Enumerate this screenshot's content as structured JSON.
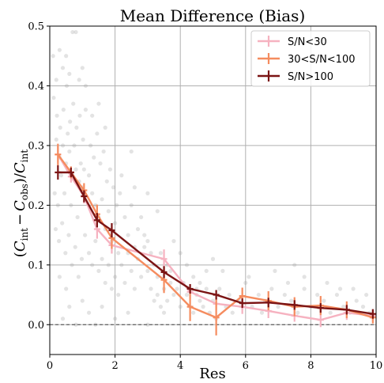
{
  "chart_data": {
    "type": "line",
    "title": "Mean Difference (Bias)",
    "xlabel": "Res",
    "ylabel_parts": {
      "open": "(",
      "c": "C",
      "int": "int",
      "minus": "−",
      "obs": "obs",
      "close": ")/"
    },
    "xlim": [
      0,
      10
    ],
    "ylim": [
      -0.05,
      0.5
    ],
    "xticks": [
      "0",
      "2",
      "4",
      "6",
      "8",
      "10"
    ],
    "yticks": [
      "0.0",
      "0.1",
      "0.2",
      "0.3",
      "0.4",
      "0.5"
    ],
    "grid": true,
    "legend_position": "top-right",
    "reference_line_y": 0.0,
    "series": [
      {
        "name": "S/N<30",
        "color": "#f6b2c0",
        "x": [
          0.25,
          0.65,
          1.05,
          1.45,
          1.9,
          3.5,
          4.3,
          5.1,
          5.9,
          6.7,
          7.5,
          8.3,
          9.1,
          9.9
        ],
        "y": [
          0.285,
          0.248,
          0.215,
          0.16,
          0.133,
          0.11,
          0.055,
          0.035,
          0.03,
          0.023,
          0.015,
          0.008,
          0.02,
          0.015
        ],
        "err": [
          0.014,
          0.01,
          0.012,
          0.016,
          0.014,
          0.016,
          0.012,
          0.01,
          0.012,
          0.012,
          0.01,
          0.012,
          0.012,
          0.01
        ]
      },
      {
        "name": "30<S/N<100",
        "color": "#f58c5f",
        "x": [
          0.25,
          0.65,
          1.05,
          1.45,
          1.9,
          3.5,
          4.3,
          5.1,
          5.9,
          6.7,
          7.5,
          8.3,
          9.1,
          9.9
        ],
        "y": [
          0.285,
          0.255,
          0.225,
          0.185,
          0.145,
          0.075,
          0.03,
          0.012,
          0.048,
          0.04,
          0.03,
          0.032,
          0.025,
          0.012
        ],
        "err": [
          0.018,
          0.01,
          0.012,
          0.016,
          0.018,
          0.022,
          0.024,
          0.03,
          0.014,
          0.016,
          0.016,
          0.016,
          0.014,
          0.01
        ]
      },
      {
        "name": "S/N>100",
        "color": "#7b1414",
        "x": [
          0.25,
          0.65,
          1.05,
          1.45,
          1.9,
          3.5,
          4.3,
          5.1,
          5.9,
          6.7,
          7.5,
          8.3,
          9.1,
          9.9
        ],
        "y": [
          0.255,
          0.255,
          0.215,
          0.175,
          0.158,
          0.088,
          0.06,
          0.05,
          0.036,
          0.037,
          0.033,
          0.028,
          0.025,
          0.018
        ],
        "err": [
          0.012,
          0.008,
          0.01,
          0.012,
          0.012,
          0.01,
          0.008,
          0.008,
          0.008,
          0.008,
          0.008,
          0.008,
          0.008,
          0.008
        ]
      }
    ],
    "scatter_cloud": {
      "color": "#9a9a9a",
      "opacity": 0.28,
      "points": [
        [
          0.1,
          0.45
        ],
        [
          0.2,
          0.31
        ],
        [
          0.3,
          0.28
        ],
        [
          0.4,
          0.3
        ],
        [
          0.5,
          0.27
        ],
        [
          0.6,
          0.29
        ],
        [
          0.7,
          0.25
        ],
        [
          0.8,
          0.26
        ],
        [
          0.9,
          0.24
        ],
        [
          1.0,
          0.23
        ],
        [
          0.15,
          0.22
        ],
        [
          0.25,
          0.2
        ],
        [
          0.35,
          0.25
        ],
        [
          0.45,
          0.22
        ],
        [
          0.55,
          0.32
        ],
        [
          0.65,
          0.2
        ],
        [
          0.75,
          0.3
        ],
        [
          0.85,
          0.18
        ],
        [
          0.95,
          0.27
        ],
        [
          1.05,
          0.26
        ],
        [
          0.12,
          0.38
        ],
        [
          0.22,
          0.35
        ],
        [
          0.32,
          0.33
        ],
        [
          0.42,
          0.36
        ],
        [
          0.52,
          0.4
        ],
        [
          0.62,
          0.34
        ],
        [
          0.72,
          0.37
        ],
        [
          0.82,
          0.33
        ],
        [
          0.92,
          0.35
        ],
        [
          1.02,
          0.31
        ],
        [
          0.18,
          0.16
        ],
        [
          0.28,
          0.14
        ],
        [
          0.38,
          0.17
        ],
        [
          0.48,
          0.12
        ],
        [
          0.58,
          0.15
        ],
        [
          0.68,
          0.1
        ],
        [
          0.78,
          0.13
        ],
        [
          0.88,
          0.08
        ],
        [
          0.98,
          0.11
        ],
        [
          1.08,
          0.15
        ],
        [
          0.7,
          0.49
        ],
        [
          0.8,
          0.49
        ],
        [
          0.3,
          0.46
        ],
        [
          0.4,
          0.43
        ],
        [
          0.6,
          0.42
        ],
        [
          0.9,
          0.41
        ],
        [
          1.0,
          0.43
        ],
        [
          0.2,
          0.41
        ],
        [
          0.5,
          0.45
        ],
        [
          1.1,
          0.4
        ],
        [
          1.2,
          0.25
        ],
        [
          1.3,
          0.22
        ],
        [
          1.4,
          0.2
        ],
        [
          1.5,
          0.18
        ],
        [
          1.6,
          0.21
        ],
        [
          1.7,
          0.16
        ],
        [
          1.8,
          0.19
        ],
        [
          1.9,
          0.14
        ],
        [
          2.0,
          0.17
        ],
        [
          2.1,
          0.12
        ],
        [
          1.25,
          0.3
        ],
        [
          1.35,
          0.28
        ],
        [
          1.45,
          0.32
        ],
        [
          1.55,
          0.27
        ],
        [
          1.65,
          0.29
        ],
        [
          1.75,
          0.24
        ],
        [
          1.85,
          0.26
        ],
        [
          1.95,
          0.23
        ],
        [
          2.05,
          0.2
        ],
        [
          2.15,
          0.22
        ],
        [
          1.2,
          0.12
        ],
        [
          1.3,
          0.1
        ],
        [
          1.4,
          0.14
        ],
        [
          1.5,
          0.09
        ],
        [
          1.6,
          0.11
        ],
        [
          1.7,
          0.07
        ],
        [
          1.8,
          0.1
        ],
        [
          1.9,
          0.06
        ],
        [
          2.0,
          0.08
        ],
        [
          2.1,
          0.05
        ],
        [
          1.3,
          0.35
        ],
        [
          1.5,
          0.37
        ],
        [
          1.7,
          0.33
        ],
        [
          1.1,
          0.36
        ],
        [
          2.2,
          0.25
        ],
        [
          2.3,
          0.18
        ],
        [
          2.4,
          0.15
        ],
        [
          2.5,
          0.2
        ],
        [
          2.6,
          0.13
        ],
        [
          2.7,
          0.16
        ],
        [
          2.2,
          0.1
        ],
        [
          2.3,
          0.07
        ],
        [
          2.4,
          0.12
        ],
        [
          2.5,
          0.09
        ],
        [
          2.6,
          0.06
        ],
        [
          2.7,
          0.11
        ],
        [
          2.8,
          0.08
        ],
        [
          2.9,
          0.13
        ],
        [
          3.0,
          0.09
        ],
        [
          3.1,
          0.06
        ],
        [
          2.8,
          0.18
        ],
        [
          2.9,
          0.15
        ],
        [
          3.0,
          0.14
        ],
        [
          3.1,
          0.12
        ],
        [
          3.2,
          0.1
        ],
        [
          3.3,
          0.08
        ],
        [
          3.4,
          0.12
        ],
        [
          3.5,
          0.06
        ],
        [
          3.6,
          0.1
        ],
        [
          3.7,
          0.07
        ],
        [
          3.2,
          0.04
        ],
        [
          3.3,
          0.05
        ],
        [
          3.4,
          0.03
        ],
        [
          3.5,
          0.02
        ],
        [
          3.6,
          0.04
        ],
        [
          3.7,
          0.09
        ],
        [
          3.8,
          0.05
        ],
        [
          3.9,
          0.06
        ],
        [
          4.0,
          0.03
        ],
        [
          4.1,
          0.07
        ],
        [
          2.5,
          0.29
        ],
        [
          2.6,
          0.23
        ],
        [
          3.0,
          0.22
        ],
        [
          3.3,
          0.19
        ],
        [
          3.8,
          0.14
        ],
        [
          4.0,
          0.12
        ],
        [
          4.2,
          0.1
        ],
        [
          4.4,
          0.08
        ],
        [
          4.5,
          0.06
        ],
        [
          4.6,
          0.04
        ],
        [
          4.2,
          0.05
        ],
        [
          4.3,
          0.03
        ],
        [
          4.4,
          0.02
        ],
        [
          4.5,
          0.05
        ],
        [
          4.6,
          0.07
        ],
        [
          4.7,
          0.03
        ],
        [
          4.8,
          0.06
        ],
        [
          4.9,
          0.02
        ],
        [
          5.0,
          0.04
        ],
        [
          5.1,
          0.01
        ],
        [
          4.8,
          0.09
        ],
        [
          5.0,
          0.11
        ],
        [
          5.2,
          0.06
        ],
        [
          5.4,
          0.03
        ],
        [
          5.5,
          0.05
        ],
        [
          5.6,
          0.02
        ],
        [
          5.8,
          0.04
        ],
        [
          6.0,
          0.07
        ],
        [
          6.2,
          0.03
        ],
        [
          6.4,
          0.05
        ],
        [
          6.5,
          0.02
        ],
        [
          6.6,
          0.04
        ],
        [
          6.8,
          0.06
        ],
        [
          7.0,
          0.03
        ],
        [
          7.2,
          0.05
        ],
        [
          7.4,
          0.04
        ],
        [
          7.6,
          0.02
        ],
        [
          7.8,
          0.06
        ],
        [
          8.0,
          0.03
        ],
        [
          8.2,
          0.05
        ],
        [
          8.4,
          0.04
        ],
        [
          8.6,
          0.02
        ],
        [
          8.8,
          0.05
        ],
        [
          9.0,
          0.03
        ],
        [
          9.2,
          0.02
        ],
        [
          9.4,
          0.04
        ],
        [
          9.6,
          0.03
        ],
        [
          9.8,
          0.02
        ],
        [
          7.3,
          0.07
        ],
        [
          7.8,
          0.08
        ],
        [
          8.5,
          0.07
        ],
        [
          9.3,
          0.06
        ],
        [
          5.3,
          0.09
        ],
        [
          6.1,
          0.08
        ],
        [
          6.9,
          0.09
        ],
        [
          7.5,
          0.1
        ],
        [
          9.7,
          0.05
        ],
        [
          8.9,
          0.06
        ],
        [
          0.3,
          0.08
        ],
        [
          0.5,
          0.06
        ],
        [
          0.6,
          0.03
        ],
        [
          1.0,
          0.04
        ],
        [
          1.2,
          0.02
        ],
        [
          0.8,
          0.0
        ],
        [
          1.4,
          0.0
        ],
        [
          2.0,
          0.01
        ],
        [
          2.4,
          0.02
        ],
        [
          3.0,
          0.0
        ],
        [
          0.4,
          0.01
        ],
        [
          1.6,
          0.03
        ]
      ]
    }
  }
}
